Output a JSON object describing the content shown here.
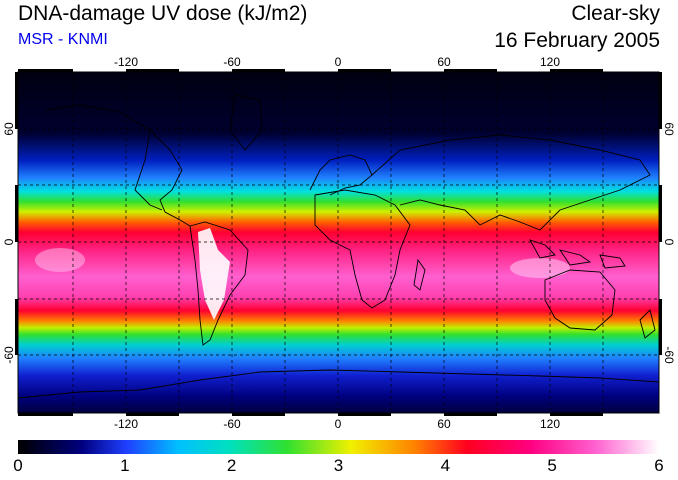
{
  "header": {
    "title": "DNA-damage UV dose (kJ/m2)",
    "source": "MSR - KNMI",
    "condition": "Clear-sky",
    "date": "16 February 2005"
  },
  "map": {
    "lon_ticks": [
      "-120",
      "-60",
      "0",
      "60",
      "120"
    ],
    "lat_ticks_left": [
      "60",
      "0",
      "-60"
    ],
    "lat_ticks_right": [
      "60",
      "0",
      "-60"
    ]
  },
  "colorbar": {
    "labels": [
      "0",
      "1",
      "2",
      "3",
      "4",
      "5",
      "6"
    ],
    "min": 0,
    "max": 6
  },
  "colors": {
    "low": "#000000",
    "mid_blue": "#2040ff",
    "cyan": "#00e0e0",
    "green": "#30e030",
    "yellow": "#f0f000",
    "red": "#ff0020",
    "magenta": "#ff40c0",
    "high": "#ffffff"
  }
}
